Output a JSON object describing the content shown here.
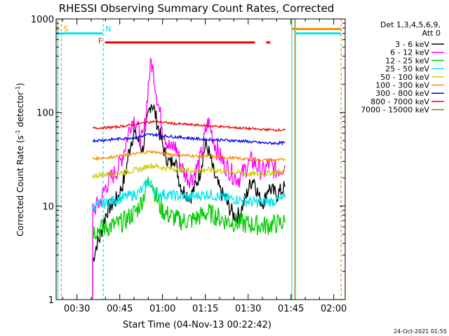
{
  "chart_data": {
    "type": "line",
    "title": "RHESSI Observing Summary Count Rates, Corrected",
    "xlabel": "Start Time (04-Nov-13 00:22:42)",
    "ylabel_main": "Corrected Count Rate (s",
    "ylabel_sup1": "-1",
    "ylabel_mid": " detector",
    "ylabel_sup2": "-1",
    "ylabel_end": ")",
    "y_scale": "log",
    "ylim": [
      1,
      1000
    ],
    "xlim_minutes": [
      22.7,
      124
    ],
    "x_ticks": [
      {
        "m": 30,
        "label": "00:30"
      },
      {
        "m": 45,
        "label": "00:45"
      },
      {
        "m": 60,
        "label": "01:00"
      },
      {
        "m": 75,
        "label": "01:15"
      },
      {
        "m": 90,
        "label": "01:30"
      },
      {
        "m": 105,
        "label": "01:45"
      },
      {
        "m": 120,
        "label": "02:00"
      }
    ],
    "y_ticks": [
      {
        "v": 1,
        "label": "1"
      },
      {
        "v": 10,
        "label": "10"
      },
      {
        "v": 100,
        "label": "100"
      },
      {
        "v": 1000,
        "label": "1000"
      }
    ],
    "legend_header": [
      "Det 1,3,4,5,6,9,",
      "Att 0"
    ],
    "timestamp": "24-Oct-2021 01:55",
    "flags": [
      {
        "label": "S",
        "color": "#ff8c00",
        "at_minute": 24.5
      },
      {
        "label": "N",
        "color": "#00e5ee",
        "at_minute": 39.2
      },
      {
        "label": "F",
        "color": "#ff0000",
        "at_minute": 39.5
      }
    ],
    "bars": [
      {
        "color": "#00e5ee",
        "start": 22.7,
        "end": 39,
        "level": 700
      },
      {
        "color": "#00e5ee",
        "start": 106.5,
        "end": 122.5,
        "level": 700
      },
      {
        "color": "#ff8c00",
        "start": 22.7,
        "end": 23.8,
        "level": 780
      },
      {
        "color": "#ff8c00",
        "start": 105.2,
        "end": 122.5,
        "level": 780
      },
      {
        "color": "#ff0000",
        "start": 39.8,
        "end": 92.4,
        "level": 560
      },
      {
        "color": "#ff0000",
        "start": 96.3,
        "end": 97.8,
        "level": 560
      }
    ],
    "vlines": [
      {
        "color": "#00e5ee",
        "minute": 23.3,
        "dashed": false
      },
      {
        "color": "#ff8c00",
        "minute": 24.5,
        "dashed": true
      },
      {
        "color": "#00e5ee",
        "minute": 39.2,
        "dashed": true
      },
      {
        "color": "#00e5ee",
        "minute": 105.3,
        "dashed": false
      },
      {
        "color": "#ff8c00",
        "minute": 106.3,
        "dashed": false
      },
      {
        "color": "#00e5ee",
        "minute": 106.6,
        "dashed": false
      },
      {
        "color": "#ff8c00",
        "minute": 122.6,
        "dashed": true
      }
    ],
    "series": [
      {
        "name": "3 - 6 keV",
        "color": "#000000",
        "x": [
          35.5,
          36,
          37,
          38,
          39,
          40,
          41,
          42,
          43,
          44,
          45,
          46,
          47,
          48,
          49,
          50,
          51,
          52,
          53,
          54,
          55,
          56,
          57,
          58,
          59,
          60,
          61,
          62,
          63,
          64,
          65,
          66,
          67,
          68,
          69,
          70,
          71,
          72,
          73,
          74,
          75,
          76,
          77,
          78,
          79,
          80,
          81,
          82,
          83,
          84,
          85,
          86,
          87,
          88,
          89,
          90,
          91,
          92,
          93,
          94,
          95,
          96,
          97,
          98,
          99,
          100,
          101,
          102,
          103
        ],
        "y": [
          2.5,
          3,
          4,
          4.5,
          6,
          8,
          9.5,
          10,
          11,
          12,
          14,
          17,
          22,
          35,
          50,
          60,
          55,
          45,
          40,
          60,
          95,
          130,
          110,
          80,
          60,
          45,
          35,
          30,
          28,
          35,
          25,
          18,
          15,
          14,
          13,
          13,
          15,
          18,
          22,
          32,
          45,
          40,
          30,
          22,
          18,
          15,
          13,
          12,
          10,
          9,
          8,
          8,
          8,
          10,
          12,
          15,
          18,
          20,
          15,
          12,
          11,
          12,
          16,
          15,
          14,
          13,
          14,
          15,
          16
        ]
      },
      {
        "name": "6 - 12 keV",
        "color": "#ff00ff",
        "x": [
          35.5,
          36,
          37,
          38,
          39,
          40,
          41,
          42,
          43,
          44,
          45,
          46,
          47,
          48,
          49,
          50,
          51,
          52,
          53,
          54,
          55,
          56,
          57,
          58,
          59,
          60,
          61,
          62,
          63,
          64,
          65,
          66,
          67,
          68,
          69,
          70,
          71,
          72,
          73,
          74,
          75,
          76,
          77,
          78,
          79,
          80,
          81,
          82,
          83,
          84,
          85,
          86,
          87,
          88,
          89,
          90,
          91,
          92,
          93,
          94,
          95,
          96,
          97,
          98,
          99,
          100,
          101,
          102,
          103
        ],
        "y": [
          9,
          9.5,
          10,
          11,
          13,
          16,
          18,
          20,
          22,
          24,
          28,
          35,
          45,
          60,
          80,
          85,
          75,
          55,
          50,
          80,
          200,
          350,
          250,
          150,
          100,
          70,
          55,
          45,
          40,
          45,
          40,
          30,
          25,
          22,
          20,
          20,
          22,
          25,
          30,
          40,
          60,
          80,
          65,
          50,
          40,
          35,
          30,
          27,
          25,
          23,
          21,
          20,
          20,
          22,
          25,
          28,
          30,
          30,
          27,
          25,
          23,
          24,
          28,
          27,
          25,
          24,
          25,
          26,
          27
        ]
      },
      {
        "name": "12 - 25 keV",
        "color": "#00cc00",
        "x": [
          35.5,
          37,
          39,
          41,
          43,
          45,
          47,
          49,
          51,
          53,
          54,
          55,
          56,
          57,
          58,
          59,
          60,
          62,
          64,
          66,
          68,
          70,
          72,
          74,
          76,
          78,
          80,
          82,
          84,
          86,
          88,
          90,
          92,
          94,
          96,
          98,
          100,
          102,
          103
        ],
        "y": [
          5.5,
          5.6,
          5.8,
          6,
          6.2,
          6.5,
          7,
          8,
          9,
          12,
          15,
          18,
          20,
          15,
          12,
          10,
          9,
          8,
          7.5,
          7,
          7,
          7,
          7.5,
          8,
          8.5,
          8,
          7.5,
          7,
          6.8,
          6.6,
          6.5,
          6.4,
          6.3,
          6.2,
          6.2,
          6.3,
          6.5,
          6.6,
          6.7
        ]
      },
      {
        "name": "25 - 50 keV",
        "color": "#00e5ee",
        "x": [
          35.5,
          37,
          39,
          41,
          43,
          45,
          47,
          49,
          51,
          53,
          54,
          55,
          56,
          57,
          58,
          59,
          60,
          62,
          64,
          66,
          68,
          70,
          72,
          74,
          76,
          78,
          80,
          82,
          84,
          86,
          88,
          90,
          92,
          94,
          96,
          98,
          100,
          102,
          103
        ],
        "y": [
          10,
          10.2,
          10.5,
          11,
          11.5,
          12,
          12.5,
          13,
          13.5,
          15,
          16.5,
          18,
          17,
          15,
          14,
          13.5,
          13.5,
          13,
          13,
          12.8,
          12.5,
          12.5,
          12.8,
          13.2,
          13.5,
          13,
          12.5,
          12.2,
          12,
          11.8,
          11.5,
          11.2,
          11,
          11,
          11,
          11.2,
          11.5,
          11.8,
          12
        ]
      },
      {
        "name": "50 - 100 keV",
        "color": "#cccc00",
        "x": [
          35.5,
          38,
          41,
          44,
          47,
          50,
          53,
          55,
          57,
          59,
          61,
          64,
          67,
          70,
          73,
          76,
          79,
          82,
          85,
          88,
          91,
          94,
          97,
          100,
          103
        ],
        "y": [
          21,
          21.5,
          22,
          22.5,
          23,
          24,
          25,
          27,
          27,
          26,
          25.5,
          25,
          24.5,
          24,
          24,
          24.5,
          24,
          23.5,
          23,
          22.5,
          22,
          22,
          22.5,
          23,
          23.5
        ]
      },
      {
        "name": "100 - 300 keV",
        "color": "#ff8c00",
        "x": [
          35.5,
          38,
          41,
          44,
          47,
          50,
          53,
          55,
          57,
          59,
          61,
          64,
          67,
          70,
          73,
          76,
          79,
          82,
          85,
          88,
          91,
          94,
          97,
          100,
          103
        ],
        "y": [
          32,
          32.5,
          33,
          34,
          35,
          36,
          37,
          38,
          38,
          37,
          36,
          35.5,
          35,
          34.5,
          34,
          34,
          33.5,
          33,
          32.5,
          32,
          31.5,
          31,
          31,
          31,
          31.5
        ]
      },
      {
        "name": "300 - 800 keV",
        "color": "#0000dd",
        "x": [
          35.5,
          38,
          41,
          44,
          47,
          50,
          53,
          55,
          57,
          59,
          61,
          64,
          67,
          70,
          73,
          76,
          79,
          82,
          85,
          88,
          91,
          94,
          97,
          100,
          103
        ],
        "y": [
          50,
          50.5,
          51,
          52,
          53,
          54,
          56,
          58,
          58,
          57,
          56,
          55,
          54,
          53,
          52,
          51.5,
          51,
          50.5,
          50,
          49.5,
          48.5,
          47.5,
          47,
          47,
          47.5
        ]
      },
      {
        "name": "800 - 7000 keV",
        "color": "#ee0000",
        "x": [
          35.5,
          38,
          41,
          44,
          47,
          50,
          53,
          55,
          57,
          59,
          61,
          64,
          67,
          70,
          73,
          76,
          79,
          82,
          85,
          88,
          91,
          94,
          97,
          100,
          103
        ],
        "y": [
          68,
          68.5,
          69,
          70,
          72,
          74,
          77,
          79,
          80,
          79,
          78,
          76,
          75,
          74,
          73,
          72,
          71,
          70,
          69,
          68,
          67,
          66,
          65.5,
          65,
          65
        ]
      },
      {
        "name": "7000 - 15000 keV",
        "color": "#808000",
        "x": [],
        "y": []
      }
    ]
  }
}
